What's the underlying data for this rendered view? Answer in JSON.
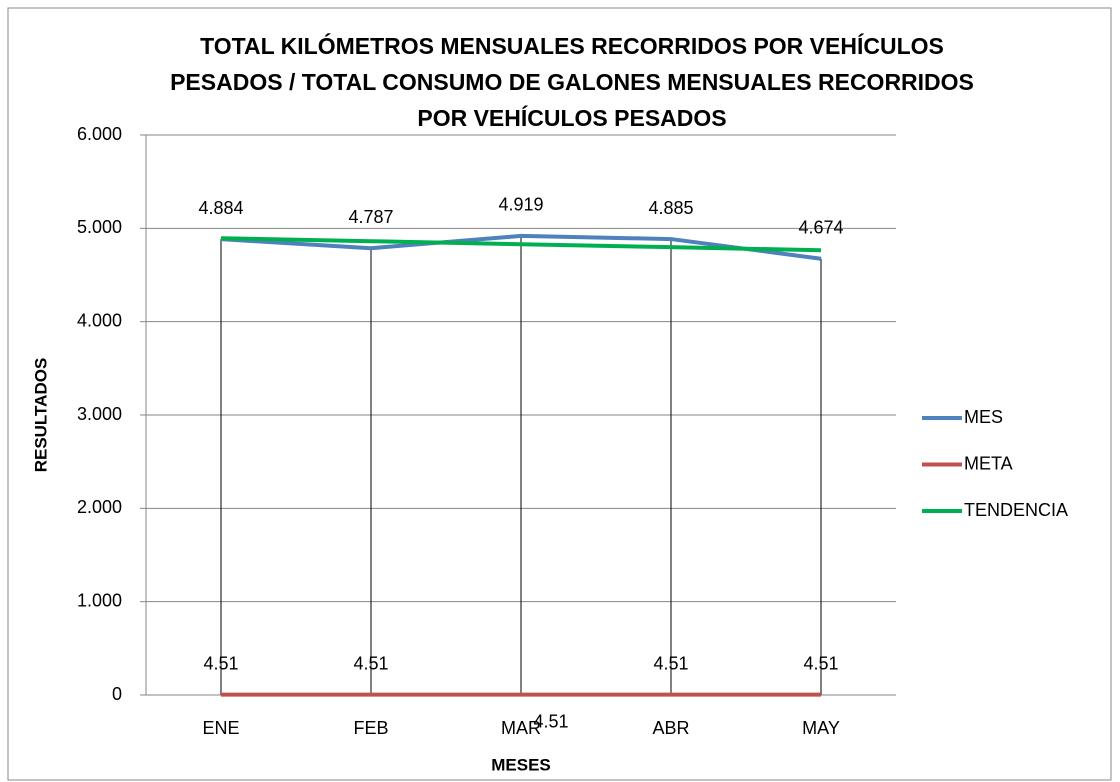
{
  "chart_data": {
    "type": "line",
    "title": [
      "TOTAL KILÓMETROS MENSUALES RECORRIDOS POR VEHÍCULOS",
      "PESADOS / TOTAL CONSUMO DE GALONES MENSUALES RECORRIDOS",
      "POR VEHÍCULOS PESADOS"
    ],
    "x_label": "MESES",
    "y_label": "RESULTADOS",
    "categories": [
      "ENE",
      "FEB",
      "MAR",
      "ABR",
      "MAY"
    ],
    "series": [
      {
        "name": "MES",
        "color": "#4f81bd",
        "values": [
          4884,
          4787,
          4919,
          4885,
          4674
        ],
        "value_labels": [
          "4.884",
          "4.787",
          "4.919",
          "4.885",
          "4.674"
        ]
      },
      {
        "name": "META",
        "color": "#c0504d",
        "values": [
          4.51,
          4.51,
          4.51,
          4.51,
          4.51
        ]
      },
      {
        "name": "TENDENCIA",
        "color": "#00b050",
        "values": [
          4894,
          4862,
          4830,
          4798,
          4765
        ]
      }
    ],
    "ylim": [
      0,
      6000
    ],
    "yticks": [
      0,
      {
        "value": 1000,
        "label": "1.000"
      },
      {
        "value": 2000,
        "label": "2.000"
      },
      {
        "value": 3000,
        "label": "3.000"
      },
      {
        "value": 4000,
        "label": "4.000"
      },
      {
        "value": 5000,
        "label": "5.000"
      },
      {
        "value": 6000,
        "label": "6.000"
      }
    ],
    "grid": true,
    "drop_lines": true,
    "legend": "right"
  }
}
